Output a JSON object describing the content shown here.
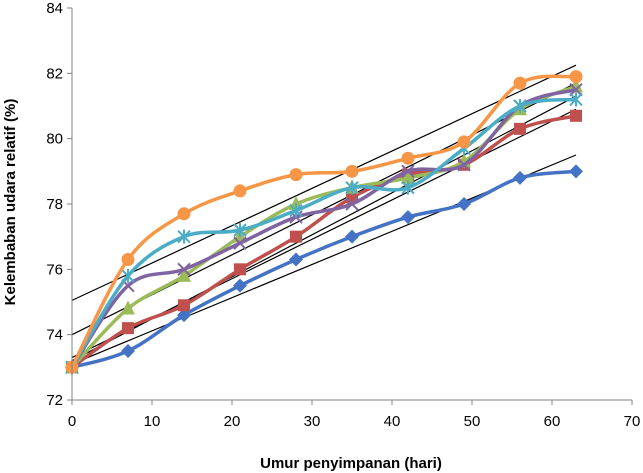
{
  "chart_data": {
    "type": "line",
    "title": "",
    "xlabel": "Umur penyimpanan (hari)",
    "ylabel": "Kelembaban udara relatif (%)",
    "xlim": [
      0,
      70
    ],
    "ylim": [
      72,
      84
    ],
    "xticks": [
      0,
      10,
      20,
      30,
      40,
      50,
      60,
      70
    ],
    "yticks": [
      72,
      74,
      76,
      78,
      80,
      82,
      84
    ],
    "grid": false,
    "legend": "none",
    "x": [
      0,
      7,
      14,
      21,
      28,
      35,
      42,
      49,
      56,
      63
    ],
    "series": [
      {
        "color": "#4472C4",
        "marker": "diamond",
        "values": [
          73.0,
          73.5,
          74.6,
          75.5,
          76.3,
          77.0,
          77.6,
          78.0,
          78.8,
          79.0
        ]
      },
      {
        "color": "#C0504D",
        "marker": "square",
        "values": [
          73.0,
          74.2,
          74.9,
          76.0,
          77.0,
          78.2,
          78.9,
          79.2,
          80.3,
          80.7
        ]
      },
      {
        "color": "#9BBB59",
        "marker": "triangle",
        "values": [
          73.0,
          74.8,
          75.8,
          77.0,
          78.0,
          78.5,
          78.8,
          79.3,
          80.9,
          81.6
        ]
      },
      {
        "color": "#8064A2",
        "marker": "x",
        "values": [
          73.0,
          75.5,
          76.0,
          76.8,
          77.6,
          78.0,
          79.0,
          79.2,
          81.0,
          81.5
        ]
      },
      {
        "color": "#4BACC6",
        "marker": "star",
        "values": [
          73.0,
          75.8,
          77.0,
          77.2,
          77.8,
          78.5,
          78.5,
          79.7,
          81.0,
          81.2
        ]
      },
      {
        "color": "#F79646",
        "marker": "circle",
        "values": [
          73.0,
          76.3,
          77.7,
          78.4,
          78.9,
          79.0,
          79.4,
          79.9,
          81.7,
          81.9
        ]
      }
    ],
    "trendlines": [
      {
        "color": "#000000",
        "from": [
          0,
          73.1
        ],
        "to": [
          63,
          79.5
        ]
      },
      {
        "color": "#000000",
        "from": [
          0,
          73.3
        ],
        "to": [
          63,
          80.9
        ]
      },
      {
        "color": "#000000",
        "from": [
          0,
          73.2
        ],
        "to": [
          63,
          81.3
        ]
      },
      {
        "color": "#000000",
        "from": [
          0,
          74.0
        ],
        "to": [
          63,
          81.7
        ]
      },
      {
        "color": "#000000",
        "from": [
          0,
          75.05
        ],
        "to": [
          63,
          82.25
        ]
      }
    ]
  }
}
